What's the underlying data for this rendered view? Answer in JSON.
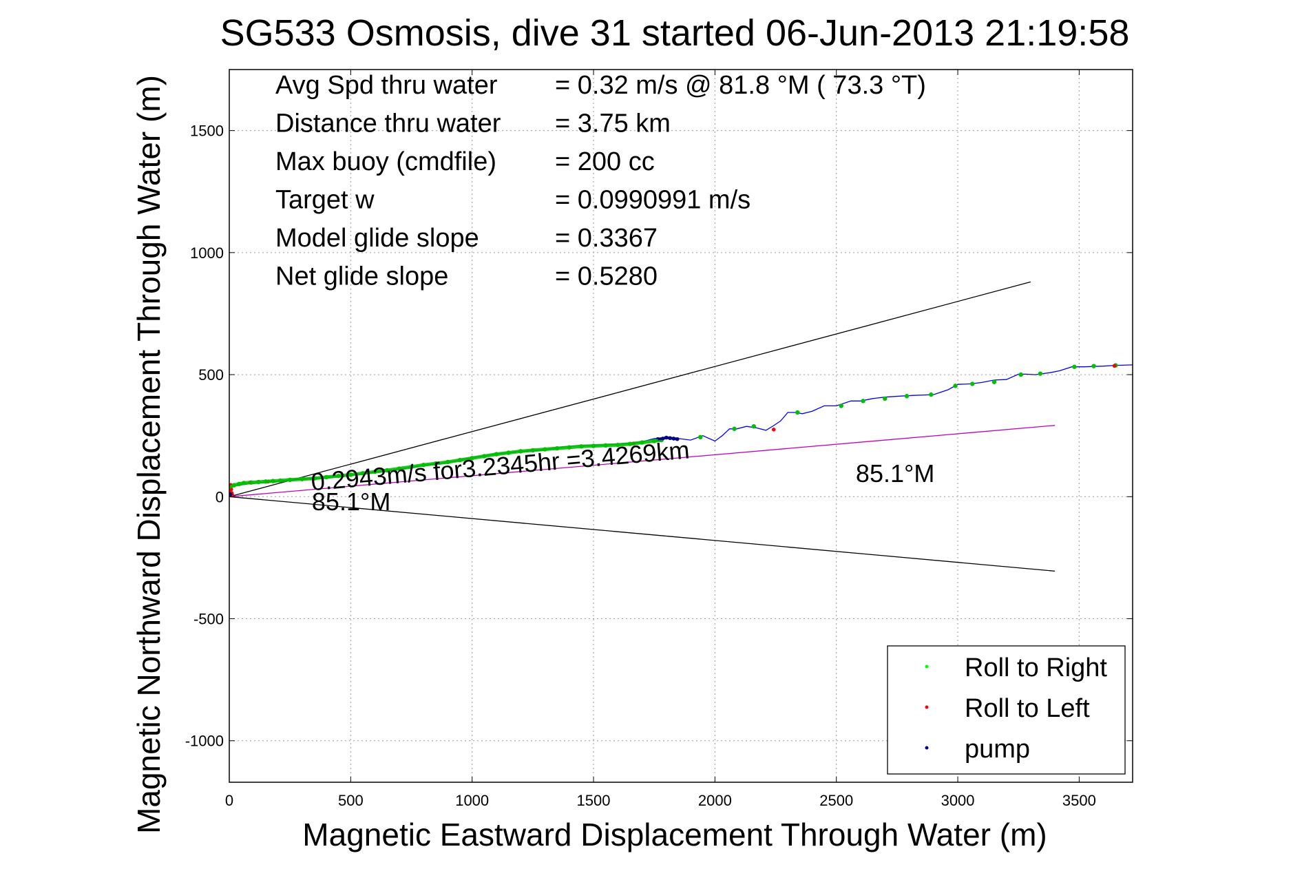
{
  "chart_data": {
    "type": "line",
    "title": "SG533 Osmosis, dive 31 started 06-Jun-2013 21:19:58",
    "xlabel": "Magnetic Eastward Displacement Through Water (m)",
    "ylabel": "Magnetic Northward Displacement Through Water (m)",
    "xlim": [
      0,
      3720
    ],
    "ylim": [
      -1170,
      1750
    ],
    "xticks": [
      0,
      500,
      1000,
      1500,
      2000,
      2500,
      3000,
      3500
    ],
    "yticks": [
      -1000,
      -500,
      0,
      500,
      1000,
      1500
    ],
    "grid": true,
    "legend_position": "bottom-right",
    "info_lines": [
      {
        "label": "Avg Spd thru water",
        "value": "=  0.32 m/s @  81.8 °M ( 73.3 °T)"
      },
      {
        "label": "Distance thru water",
        "value": "=  3.75 km"
      },
      {
        "label": "Max buoy (cmdfile)",
        "value": "= 200 cc"
      },
      {
        "label": "Target w",
        "value": "= 0.0990991 m/s"
      },
      {
        "label": "Model glide slope",
        "value": "= 0.3367"
      },
      {
        "label": "Net glide slope",
        "value": "= 0.5280"
      }
    ],
    "annotations": [
      {
        "text": "0.2943m/s for3.2345hr =3.4269km",
        "x": 340,
        "y": 25,
        "rotation_deg": -4.9
      },
      {
        "text": "85.1°M",
        "x": 340,
        "y": -55,
        "rotation_deg": 0
      },
      {
        "text": "85.1°M",
        "x": 2580,
        "y": 60,
        "rotation_deg": 0
      }
    ],
    "series": [
      {
        "color": "#0000ff",
        "x": [
          0,
          3,
          8,
          15,
          30,
          60,
          100,
          150,
          200,
          250,
          300,
          400,
          500,
          600,
          700,
          800,
          900,
          1000,
          1100,
          1200,
          1300,
          1380,
          1450,
          1550,
          1650,
          1700,
          1750,
          1800,
          1850,
          1900,
          1950,
          2000,
          2030,
          2060,
          2090,
          2130,
          2170,
          2210,
          2240,
          2270,
          2300,
          2330,
          2360,
          2400,
          2450,
          2500,
          2560,
          2600,
          2650,
          2700,
          2760,
          2820,
          2900,
          2960,
          3000,
          3050,
          3100,
          3150,
          3200,
          3250,
          3280,
          3320,
          3380,
          3420,
          3470,
          3520,
          3600,
          3650,
          3720
        ],
        "y": [
          15,
          25,
          35,
          40,
          45,
          50,
          55,
          58,
          62,
          68,
          72,
          78,
          88,
          100,
          112,
          128,
          140,
          160,
          175,
          185,
          192,
          205,
          210,
          212,
          218,
          225,
          238,
          242,
          238,
          232,
          250,
          228,
          250,
          278,
          278,
          288,
          282,
          272,
          290,
          310,
          345,
          345,
          340,
          350,
          372,
          372,
          392,
          392,
          402,
          408,
          412,
          415,
          418,
          438,
          460,
          462,
          468,
          478,
          480,
          502,
          502,
          500,
          508,
          516,
          532,
          532,
          535,
          538,
          540
        ]
      },
      {
        "color": "#00c000",
        "x": [
          5,
          20,
          40,
          60,
          90,
          120,
          150,
          180,
          210,
          250,
          300,
          350,
          400,
          450,
          500,
          550,
          600,
          650,
          700,
          750,
          800,
          850,
          900,
          950,
          1000,
          1050,
          1100,
          1150,
          1200,
          1250,
          1300,
          1350,
          1400,
          1450,
          1500,
          1550,
          1600,
          1650,
          1700,
          1750,
          1780,
          1940,
          2080,
          2160,
          2340,
          2520,
          2610,
          2700,
          2790,
          2890,
          2990,
          3060,
          3150,
          3260,
          3340,
          3480,
          3560,
          3650
        ],
        "y": [
          40,
          47,
          52,
          56,
          58,
          60,
          62,
          64,
          66,
          69,
          72,
          75,
          80,
          85,
          90,
          96,
          102,
          108,
          115,
          122,
          130,
          136,
          142,
          150,
          158,
          166,
          174,
          180,
          186,
          190,
          194,
          198,
          202,
          206,
          208,
          210,
          212,
          216,
          222,
          228,
          232,
          244,
          278,
          288,
          345,
          372,
          392,
          402,
          412,
          418,
          454,
          462,
          470,
          500,
          504,
          532,
          535,
          538
        ]
      },
      {
        "color": "#ff0000",
        "x": [
          0,
          2,
          4,
          6,
          8,
          10,
          12,
          85,
          160,
          1665,
          2242,
          3645
        ],
        "y": [
          5,
          20,
          35,
          48,
          30,
          15,
          8,
          58,
          62,
          218,
          275,
          536
        ]
      },
      {
        "color": "#00008b",
        "x": [
          5,
          1765,
          1785,
          1800,
          1815,
          1830,
          1845
        ],
        "y": [
          10,
          236,
          238,
          242,
          240,
          238,
          236
        ]
      }
    ],
    "reference_lines": [
      {
        "color": "#000000",
        "x": [
          0,
          3300
        ],
        "y": [
          0,
          880
        ]
      },
      {
        "color": "#000000",
        "x": [
          0,
          3400
        ],
        "y": [
          0,
          -305
        ]
      },
      {
        "color": "#c000c0",
        "x": [
          0,
          3400
        ],
        "y": [
          0,
          292
        ]
      }
    ],
    "legend": [
      {
        "label": "Roll to Right",
        "color": "#00ff00"
      },
      {
        "label": "Roll to Left",
        "color": "#ff0000"
      },
      {
        "label": "pump",
        "color": "#00008b"
      }
    ]
  }
}
